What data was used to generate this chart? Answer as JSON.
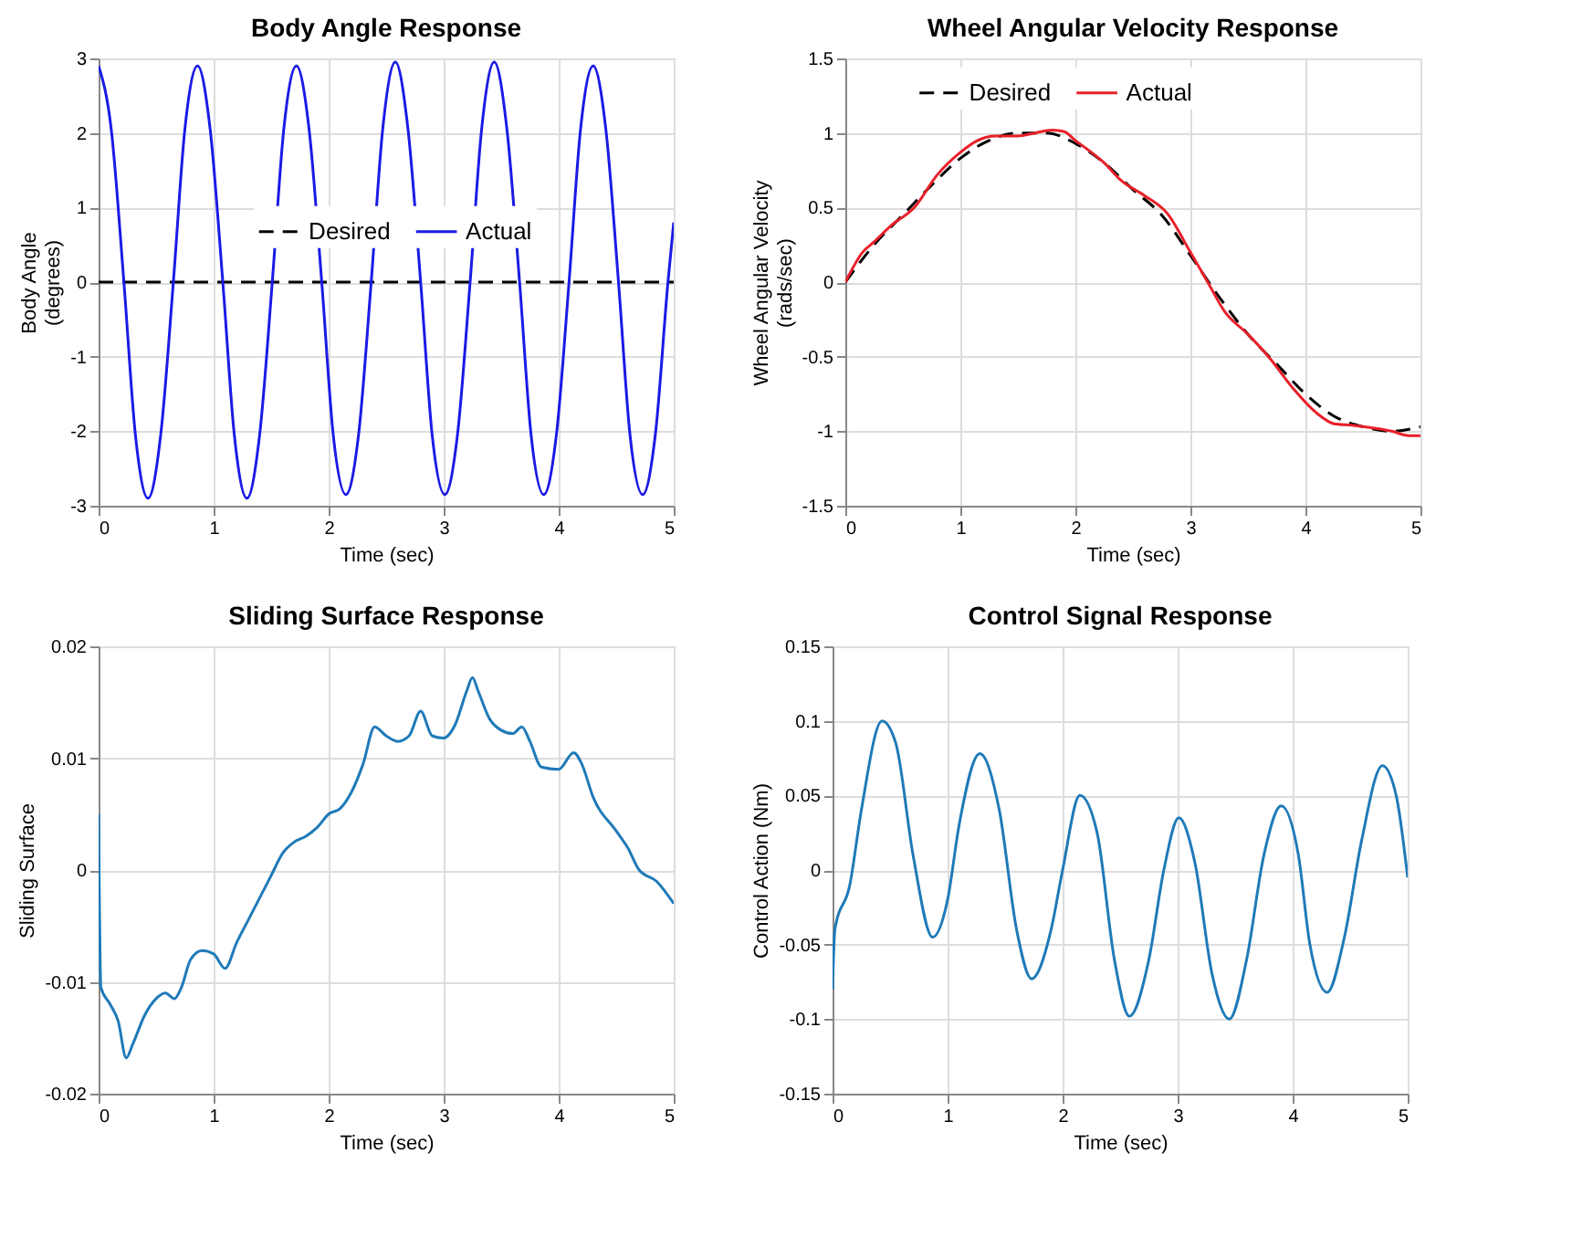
{
  "chart_data": [
    {
      "type": "line",
      "title": "Body Angle Response",
      "xlabel": "Time (sec)",
      "ylabel": "Body Angle\n(degrees)",
      "xlim": [
        0,
        5
      ],
      "xticks": [
        0,
        1,
        2,
        3,
        4,
        5
      ],
      "ylim": [
        -3,
        3
      ],
      "yticks": [
        -3,
        -2,
        -1,
        0,
        1,
        2,
        3
      ],
      "grid": true,
      "legend": "right",
      "series": [
        {
          "name": "Desired",
          "color": "#000000",
          "line_style": "dashed",
          "x": [
            0,
            5
          ],
          "values": [
            0,
            0
          ]
        },
        {
          "name": "Actual",
          "color": "#1a1ae6",
          "line_style": "solid",
          "x": [
            0,
            0.11,
            0.22,
            0.32,
            0.43,
            0.54,
            0.65,
            0.75,
            0.86,
            0.97,
            1.08,
            1.18,
            1.29,
            1.4,
            1.51,
            1.61,
            1.72,
            1.83,
            1.94,
            2.04,
            2.15,
            2.26,
            2.37,
            2.47,
            2.58,
            2.69,
            2.8,
            2.9,
            3.01,
            3.12,
            3.23,
            3.33,
            3.44,
            3.55,
            3.66,
            3.76,
            3.87,
            3.98,
            4.09,
            4.19,
            4.3,
            4.41,
            4.52,
            4.62,
            4.73,
            4.84,
            4.95,
            5.0
          ],
          "values": [
            2.9,
            2.05,
            0,
            -2.05,
            -2.9,
            -2.05,
            0,
            2.05,
            2.9,
            2.05,
            0,
            -2.05,
            -2.9,
            -2.05,
            0,
            2.05,
            2.9,
            2.05,
            0,
            -2.05,
            -2.85,
            -2.05,
            0,
            2.05,
            2.95,
            2.05,
            0,
            -2.05,
            -2.85,
            -2.05,
            0,
            2.05,
            2.95,
            2.05,
            0,
            -2.05,
            -2.85,
            -2.05,
            0,
            2.05,
            2.9,
            2.05,
            0,
            -2.05,
            -2.85,
            -2.05,
            0,
            0.8
          ]
        }
      ]
    },
    {
      "type": "line",
      "title": "Wheel Angular Velocity Response",
      "xlabel": "Time (sec)",
      "ylabel": "Wheel Angular Velocity\n(rads/sec)",
      "xlim": [
        0,
        5
      ],
      "xticks": [
        0,
        1,
        2,
        3,
        4,
        5
      ],
      "ylim": [
        -1.5,
        1.5
      ],
      "yticks": [
        -1.5,
        -1,
        -0.5,
        0,
        0.5,
        1,
        1.5
      ],
      "grid": true,
      "legend": "top",
      "series": [
        {
          "name": "Desired",
          "color": "#000000",
          "line_style": "dashed",
          "x": [
            0,
            0.25,
            0.5,
            0.75,
            1,
            1.25,
            1.5,
            1.75,
            2,
            2.25,
            2.5,
            2.75,
            3,
            3.25,
            3.5,
            3.75,
            4,
            4.25,
            4.5,
            4.75,
            5
          ],
          "values": [
            0,
            0.25,
            0.45,
            0.65,
            0.83,
            0.95,
            1.0,
            1.0,
            0.93,
            0.8,
            0.62,
            0.45,
            0.18,
            -0.1,
            -0.35,
            -0.55,
            -0.75,
            -0.9,
            -0.97,
            -1.0,
            -0.97
          ]
        },
        {
          "name": "Actual",
          "color": "#e8202a",
          "line_style": "solid",
          "x": [
            0,
            0.15,
            0.25,
            0.4,
            0.6,
            0.8,
            1,
            1.15,
            1.3,
            1.5,
            1.65,
            1.8,
            1.9,
            2,
            2.25,
            2.4,
            2.6,
            2.8,
            3,
            3.15,
            3.3,
            3.5,
            3.7,
            3.9,
            4.1,
            4.25,
            4.4,
            4.6,
            4.75,
            4.9,
            5
          ],
          "values": [
            0,
            0.2,
            0.27,
            0.38,
            0.5,
            0.72,
            0.87,
            0.95,
            0.98,
            0.98,
            1.0,
            1.02,
            1.01,
            0.95,
            0.8,
            0.68,
            0.58,
            0.46,
            0.2,
            0.0,
            -0.2,
            -0.35,
            -0.52,
            -0.72,
            -0.88,
            -0.95,
            -0.96,
            -0.98,
            -1.0,
            -1.03,
            -1.03
          ]
        }
      ]
    },
    {
      "type": "line",
      "title": "Sliding Surface Response",
      "xlabel": "Time (sec)",
      "ylabel": "Sliding Surface",
      "xlim": [
        0,
        5
      ],
      "xticks": [
        0,
        1,
        2,
        3,
        4,
        5
      ],
      "ylim": [
        -0.02,
        0.02
      ],
      "yticks": [
        -0.02,
        -0.01,
        0,
        0.01,
        0.02
      ],
      "grid": true,
      "series": [
        {
          "color": "#1f7ab8",
          "line_style": "solid",
          "x": [
            0,
            0.02,
            0.1,
            0.17,
            0.24,
            0.3,
            0.4,
            0.5,
            0.58,
            0.66,
            0.72,
            0.8,
            0.9,
            1.0,
            1.1,
            1.2,
            1.3,
            1.4,
            1.5,
            1.6,
            1.7,
            1.8,
            1.9,
            2.0,
            2.1,
            2.2,
            2.3,
            2.4,
            2.5,
            2.6,
            2.7,
            2.8,
            2.9,
            3.0,
            3.1,
            3.2,
            3.25,
            3.3,
            3.4,
            3.5,
            3.6,
            3.68,
            3.75,
            3.85,
            4.0,
            4.13,
            4.2,
            4.3,
            4.5,
            4.6,
            4.7,
            4.85,
            5.0
          ],
          "values": [
            0.005,
            -0.0105,
            -0.012,
            -0.0135,
            -0.0168,
            -0.0155,
            -0.013,
            -0.0115,
            -0.011,
            -0.0115,
            -0.0105,
            -0.008,
            -0.0072,
            -0.0075,
            -0.0088,
            -0.0065,
            -0.0045,
            -0.0025,
            -0.0005,
            0.0015,
            0.0025,
            0.003,
            0.0038,
            0.005,
            0.0055,
            0.007,
            0.0095,
            0.0128,
            0.012,
            0.0115,
            0.012,
            0.0142,
            0.012,
            0.0118,
            0.013,
            0.016,
            0.0172,
            0.016,
            0.0135,
            0.0125,
            0.0122,
            0.0128,
            0.0115,
            0.0092,
            0.009,
            0.0105,
            0.0095,
            0.0065,
            0.0035,
            0.002,
            0.0,
            -0.001,
            -0.003
          ]
        }
      ]
    },
    {
      "type": "line",
      "title": "Control Signal Response",
      "xlabel": "Time (sec)",
      "ylabel": "Control Action (Nm)",
      "xlim": [
        0,
        5
      ],
      "xticks": [
        0,
        1,
        2,
        3,
        4,
        5
      ],
      "ylim": [
        -0.15,
        0.15
      ],
      "yticks": [
        -0.15,
        -0.1,
        -0.05,
        0,
        0.05,
        0.1,
        0.15
      ],
      "grid": true,
      "series": [
        {
          "color": "#1f7ab8",
          "line_style": "solid",
          "x": [
            0,
            0.02,
            0.15,
            0.25,
            0.43,
            0.55,
            0.7,
            0.87,
            1.0,
            1.1,
            1.28,
            1.45,
            1.6,
            1.73,
            1.9,
            2.0,
            2.15,
            2.3,
            2.45,
            2.58,
            2.75,
            2.88,
            3.01,
            3.15,
            3.3,
            3.45,
            3.6,
            3.75,
            3.9,
            4.05,
            4.15,
            4.3,
            4.45,
            4.6,
            4.78,
            4.9,
            5.0
          ],
          "values": [
            -0.08,
            -0.04,
            -0.01,
            0.04,
            0.1,
            0.085,
            0.01,
            -0.045,
            -0.02,
            0.03,
            0.078,
            0.04,
            -0.04,
            -0.073,
            -0.04,
            0.0,
            0.05,
            0.025,
            -0.06,
            -0.098,
            -0.06,
            0.0,
            0.035,
            0.005,
            -0.07,
            -0.1,
            -0.06,
            0.01,
            0.043,
            0.01,
            -0.05,
            -0.082,
            -0.045,
            0.02,
            0.07,
            0.05,
            -0.005
          ]
        }
      ]
    }
  ]
}
